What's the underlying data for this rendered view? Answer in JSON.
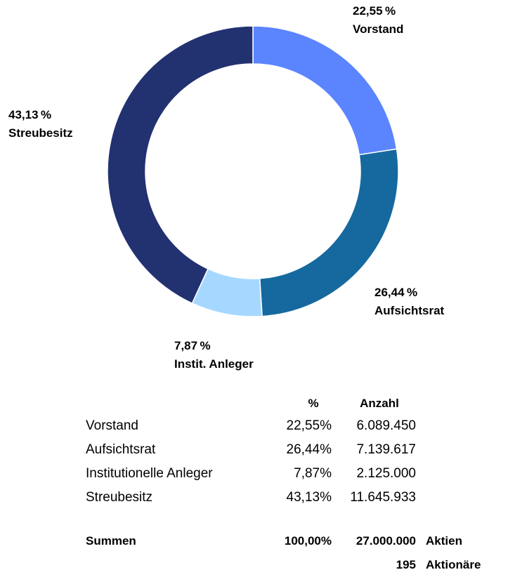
{
  "chart_data": {
    "type": "pie",
    "style": "donut",
    "slices": [
      {
        "pct_label": "22,55 %",
        "name": "Vorstand",
        "value": 22.55,
        "color": "#5B84FF"
      },
      {
        "pct_label": "26,44 %",
        "name": "Aufsichtsrat",
        "value": 26.44,
        "color": "#15699E"
      },
      {
        "pct_label": "7,87 %",
        "name": "Instit. Anleger",
        "value": 7.87,
        "color": "#A6D8FF"
      },
      {
        "pct_label": "43,13 %",
        "name": "Streubesitz",
        "value": 43.13,
        "color": "#223170"
      }
    ]
  },
  "table": {
    "headers": {
      "pct": "%",
      "count": "Anzahl"
    },
    "rows": [
      {
        "name": "Vorstand",
        "pct": "22,55%",
        "count": "6.089.450"
      },
      {
        "name": "Aufsichtsrat",
        "pct": "26,44%",
        "count": "7.139.617"
      },
      {
        "name": "Institutionelle Anleger",
        "pct": "7,87%",
        "count": "2.125.000"
      },
      {
        "name": "Streubesitz",
        "pct": "43,13%",
        "count": "11.645.933"
      }
    ],
    "sum": {
      "name": "Summen",
      "pct": "100,00%",
      "count": "27.000.000",
      "unit": "Aktien"
    },
    "holders": {
      "count": "195",
      "unit": "Aktionäre"
    }
  }
}
